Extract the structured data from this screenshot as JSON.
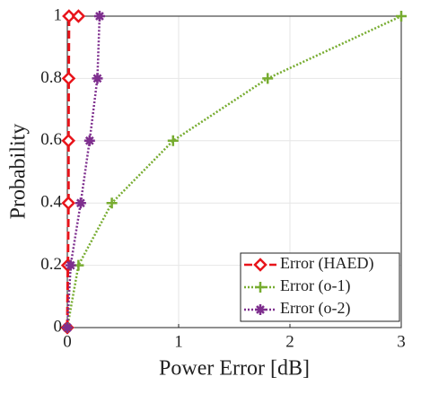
{
  "chart_data": {
    "type": "line",
    "xlabel": "Power Error [dB]",
    "ylabel": "Probability",
    "xlim": [
      0,
      3
    ],
    "xticks": [
      0,
      1,
      2,
      3
    ],
    "ylim": [
      0,
      1
    ],
    "yticks": [
      0,
      0.2,
      0.4,
      0.6,
      0.8,
      1
    ],
    "grid": true,
    "legend": "lower right",
    "series": [
      {
        "name": "Error (HAED)",
        "color": "#e8141b",
        "dash": "dashed",
        "marker": "diamond",
        "x": [
          0,
          0.005,
          0.01,
          0.01,
          0.012,
          0.015,
          0.1
        ],
        "values": [
          0,
          0.2,
          0.4,
          0.6,
          0.8,
          1,
          1
        ]
      },
      {
        "name": "Error (o-1)",
        "color": "#77ac30",
        "dash": "dotted",
        "marker": "plus",
        "x": [
          0,
          0.1,
          0.4,
          0.95,
          1.8,
          3
        ],
        "values": [
          0,
          0.2,
          0.4,
          0.6,
          0.8,
          1
        ]
      },
      {
        "name": "Error (o-2)",
        "color": "#7e2f8e",
        "dash": "dotted",
        "marker": "asterisk",
        "x": [
          0,
          0.03,
          0.12,
          0.2,
          0.27,
          0.29
        ],
        "values": [
          0,
          0.2,
          0.4,
          0.6,
          0.8,
          1
        ]
      }
    ]
  }
}
